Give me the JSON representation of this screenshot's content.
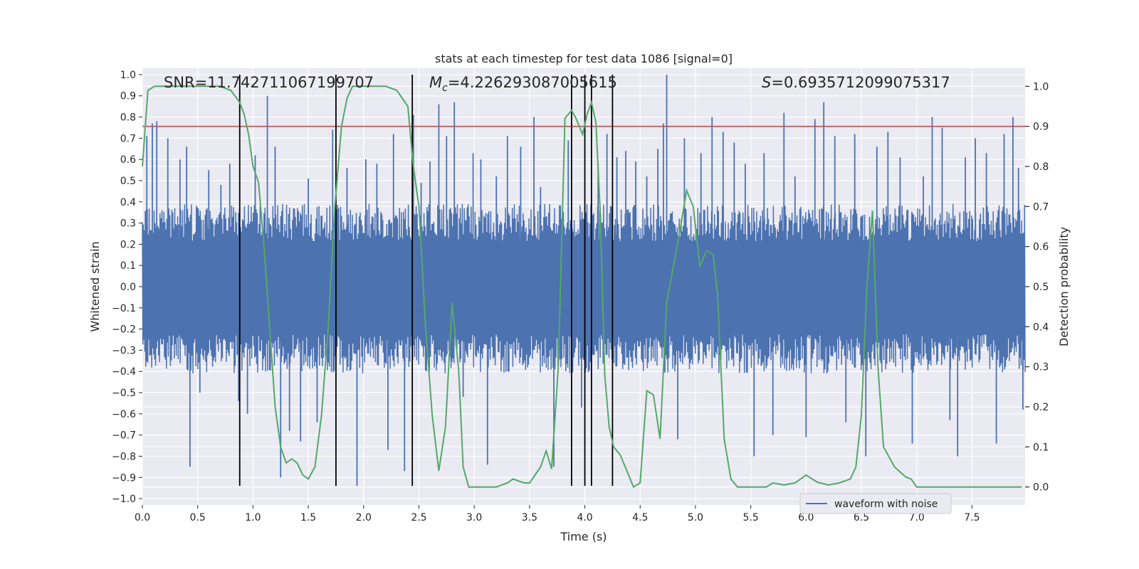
{
  "chart_data": {
    "type": "line",
    "title": "stats at each timestep for test data 1086 [signal=0]",
    "xlabel": "Time (s)",
    "ylabel_left": "Whitened strain",
    "ylabel_right": "Detection probability",
    "xlim": [
      0.0,
      7.98
    ],
    "ylim_left": [
      -1.03,
      1.03
    ],
    "ylim_right": [
      -0.045,
      1.045
    ],
    "x_ticks": [
      0.0,
      0.5,
      1.0,
      1.5,
      2.0,
      2.5,
      3.0,
      3.5,
      4.0,
      4.5,
      5.0,
      5.5,
      6.0,
      6.5,
      7.0,
      7.5
    ],
    "x_tick_labels": [
      "0.0",
      "0.5",
      "1.0",
      "1.5",
      "2.0",
      "2.5",
      "3.0",
      "3.5",
      "4.0",
      "4.5",
      "5.0",
      "5.5",
      "6.0",
      "6.5",
      "7.0",
      "7.5"
    ],
    "y_ticks_left": [
      1.0,
      0.9,
      0.8,
      0.7,
      0.6,
      0.5,
      0.4,
      0.3,
      0.2,
      0.1,
      0.0,
      -0.1,
      -0.2,
      -0.3,
      -0.4,
      -0.5,
      -0.6,
      -0.7,
      -0.8,
      -0.9,
      -1.0
    ],
    "y_tick_labels_left": [
      "1.0",
      "0.9",
      "0.8",
      "0.7",
      "0.6",
      "0.5",
      "0.4",
      "0.3",
      "0.2",
      "0.1",
      "0.0",
      "−0.1",
      "−0.2",
      "−0.3",
      "−0.4",
      "−0.5",
      "−0.6",
      "−0.7",
      "−0.8",
      "−0.9",
      "−1.0"
    ],
    "y_ticks_right": [
      1.0,
      0.9,
      0.8,
      0.7,
      0.6,
      0.5,
      0.4,
      0.3,
      0.2,
      0.1,
      0.0
    ],
    "y_tick_labels_right": [
      "1.0",
      "0.9",
      "0.8",
      "0.7",
      "0.6",
      "0.5",
      "0.4",
      "0.3",
      "0.2",
      "0.1",
      "0.0"
    ],
    "grid": true,
    "legend_position": "lower-right",
    "annotations": {
      "snr": "SNR=11.742711067199707",
      "mc_symbol": "M",
      "mc_subscript": "c",
      "mc_value": "=4.226293087005615",
      "s_symbol": "S",
      "s_value": "=0.6935712099075317"
    },
    "threshold": {
      "value": 0.9,
      "color": "#c44e52"
    },
    "vertical_lines": {
      "x": [
        0.88,
        1.75,
        2.44,
        3.88,
        4.0,
        4.06,
        4.25
      ],
      "y_range": [
        -0.94,
        1.0
      ],
      "color": "#000000"
    },
    "series": [
      {
        "name": "waveform with noise",
        "axis": "left",
        "color": "#4c72b0",
        "envelope": {
          "upper_typical": 0.39,
          "lower_typical": -0.41
        },
        "spikes": [
          [
            0.04,
            0.71
          ],
          [
            0.09,
            0.77
          ],
          [
            0.13,
            0.78
          ],
          [
            0.23,
            0.7
          ],
          [
            0.34,
            0.6
          ],
          [
            0.4,
            0.66
          ],
          [
            0.43,
            -0.85
          ],
          [
            0.52,
            -0.5
          ],
          [
            0.6,
            0.55
          ],
          [
            0.71,
            0.48
          ],
          [
            0.79,
            0.58
          ],
          [
            0.87,
            -0.54
          ],
          [
            0.95,
            -0.6
          ],
          [
            1.02,
            0.62
          ],
          [
            1.13,
            0.9
          ],
          [
            1.2,
            0.66
          ],
          [
            1.25,
            -0.9
          ],
          [
            1.33,
            -0.68
          ],
          [
            1.43,
            -0.73
          ],
          [
            1.5,
            0.51
          ],
          [
            1.58,
            -0.64
          ],
          [
            1.72,
            0.74
          ],
          [
            1.85,
            0.56
          ],
          [
            1.94,
            -0.94
          ],
          [
            2.02,
            0.6
          ],
          [
            2.12,
            0.58
          ],
          [
            2.22,
            -0.77
          ],
          [
            2.27,
            0.72
          ],
          [
            2.37,
            -0.87
          ],
          [
            2.45,
            0.81
          ],
          [
            2.52,
            0.49
          ],
          [
            2.6,
            0.59
          ],
          [
            2.68,
            0.86
          ],
          [
            2.75,
            0.71
          ],
          [
            2.82,
            0.87
          ],
          [
            2.9,
            -0.52
          ],
          [
            2.99,
            0.63
          ],
          [
            3.06,
            0.6
          ],
          [
            3.12,
            -0.84
          ],
          [
            3.2,
            0.52
          ],
          [
            3.3,
            0.71
          ],
          [
            3.42,
            0.66
          ],
          [
            3.54,
            0.8
          ],
          [
            3.6,
            0.47
          ],
          [
            3.72,
            -0.85
          ],
          [
            3.85,
            0.69
          ],
          [
            3.97,
            -0.57
          ],
          [
            4.12,
            0.58
          ],
          [
            4.2,
            0.72
          ],
          [
            4.29,
            0.61
          ],
          [
            4.37,
            0.64
          ],
          [
            4.46,
            0.59
          ],
          [
            4.56,
            0.52
          ],
          [
            4.66,
            0.65
          ],
          [
            4.71,
            0.77
          ],
          [
            4.74,
            1.0
          ],
          [
            4.84,
            -0.72
          ],
          [
            4.9,
            0.7
          ],
          [
            5.05,
            0.63
          ],
          [
            5.15,
            0.8
          ],
          [
            5.25,
            0.73
          ],
          [
            5.35,
            0.68
          ],
          [
            5.45,
            0.58
          ],
          [
            5.53,
            -0.8
          ],
          [
            5.62,
            0.63
          ],
          [
            5.7,
            -0.7
          ],
          [
            5.8,
            0.82
          ],
          [
            5.9,
            0.52
          ],
          [
            6.0,
            -0.71
          ],
          [
            6.08,
            0.79
          ],
          [
            6.16,
            0.87
          ],
          [
            6.26,
            0.71
          ],
          [
            6.36,
            -0.64
          ],
          [
            6.44,
            0.72
          ],
          [
            6.54,
            -0.8
          ],
          [
            6.64,
            0.66
          ],
          [
            6.74,
            0.73
          ],
          [
            6.85,
            0.61
          ],
          [
            6.96,
            -0.74
          ],
          [
            7.06,
            0.52
          ],
          [
            7.14,
            0.8
          ],
          [
            7.23,
            0.75
          ],
          [
            7.3,
            -0.63
          ],
          [
            7.37,
            -0.8
          ],
          [
            7.44,
            0.61
          ],
          [
            7.53,
            0.7
          ],
          [
            7.63,
            0.63
          ],
          [
            7.72,
            -0.74
          ],
          [
            7.79,
            0.72
          ],
          [
            7.87,
            0.8
          ],
          [
            7.92,
            0.56
          ],
          [
            7.96,
            -0.58
          ]
        ]
      },
      {
        "name": "",
        "axis": "right",
        "color": "#55a868",
        "x": [
          0.0,
          0.05,
          0.11,
          0.5,
          0.7,
          0.8,
          0.88,
          0.92,
          0.96,
          1.0,
          1.05,
          1.1,
          1.15,
          1.2,
          1.25,
          1.3,
          1.35,
          1.4,
          1.45,
          1.5,
          1.56,
          1.62,
          1.68,
          1.74,
          1.8,
          1.85,
          1.9,
          2.0,
          2.1,
          2.2,
          2.3,
          2.4,
          2.45,
          2.5,
          2.56,
          2.62,
          2.68,
          2.74,
          2.8,
          2.86,
          2.9,
          2.95,
          3.0,
          3.1,
          3.2,
          3.3,
          3.35,
          3.4,
          3.45,
          3.5,
          3.6,
          3.65,
          3.7,
          3.76,
          3.82,
          3.88,
          3.92,
          3.98,
          4.02,
          4.06,
          4.1,
          4.14,
          4.18,
          4.22,
          4.26,
          4.32,
          4.38,
          4.44,
          4.5,
          4.56,
          4.62,
          4.68,
          4.74,
          4.8,
          4.86,
          4.92,
          4.98,
          5.04,
          5.1,
          5.16,
          5.2,
          5.26,
          5.32,
          5.38,
          5.44,
          5.48,
          5.52,
          5.58,
          5.64,
          5.7,
          5.8,
          5.9,
          6.0,
          6.1,
          6.2,
          6.3,
          6.4,
          6.45,
          6.5,
          6.55,
          6.6,
          6.65,
          6.7,
          6.8,
          6.9,
          6.95,
          7.0,
          7.05,
          7.1,
          7.15,
          7.2,
          7.25,
          7.3,
          7.36,
          7.42,
          7.5,
          7.6,
          7.7,
          7.8,
          7.95
        ],
        "y": [
          0.8,
          0.99,
          1.0,
          1.0,
          1.0,
          0.99,
          0.96,
          0.93,
          0.88,
          0.8,
          0.76,
          0.6,
          0.4,
          0.2,
          0.1,
          0.06,
          0.07,
          0.06,
          0.03,
          0.02,
          0.05,
          0.18,
          0.4,
          0.7,
          0.9,
          0.97,
          1.0,
          1.0,
          1.0,
          1.0,
          0.99,
          0.95,
          0.8,
          0.7,
          0.4,
          0.18,
          0.04,
          0.15,
          0.46,
          0.29,
          0.05,
          0.0,
          0.0,
          0.0,
          0.0,
          0.01,
          0.02,
          0.015,
          0.01,
          0.01,
          0.05,
          0.09,
          0.045,
          0.3,
          0.92,
          0.94,
          0.92,
          0.88,
          0.93,
          0.96,
          0.91,
          0.68,
          0.28,
          0.15,
          0.1,
          0.08,
          0.04,
          0.0,
          0.01,
          0.24,
          0.23,
          0.12,
          0.46,
          0.55,
          0.64,
          0.74,
          0.7,
          0.55,
          0.59,
          0.58,
          0.48,
          0.12,
          0.02,
          0.0,
          0.0,
          0.0,
          0.0,
          0.0,
          0.0,
          0.01,
          0.005,
          0.01,
          0.03,
          0.012,
          0.005,
          0.01,
          0.02,
          0.05,
          0.18,
          0.5,
          0.69,
          0.3,
          0.1,
          0.05,
          0.025,
          0.02,
          0.0,
          0.0,
          0.0,
          0.0,
          0.0,
          0.0,
          0.0,
          0.0,
          0.0,
          0.0,
          0.0,
          0.0,
          0.0,
          0.0
        ]
      }
    ]
  }
}
